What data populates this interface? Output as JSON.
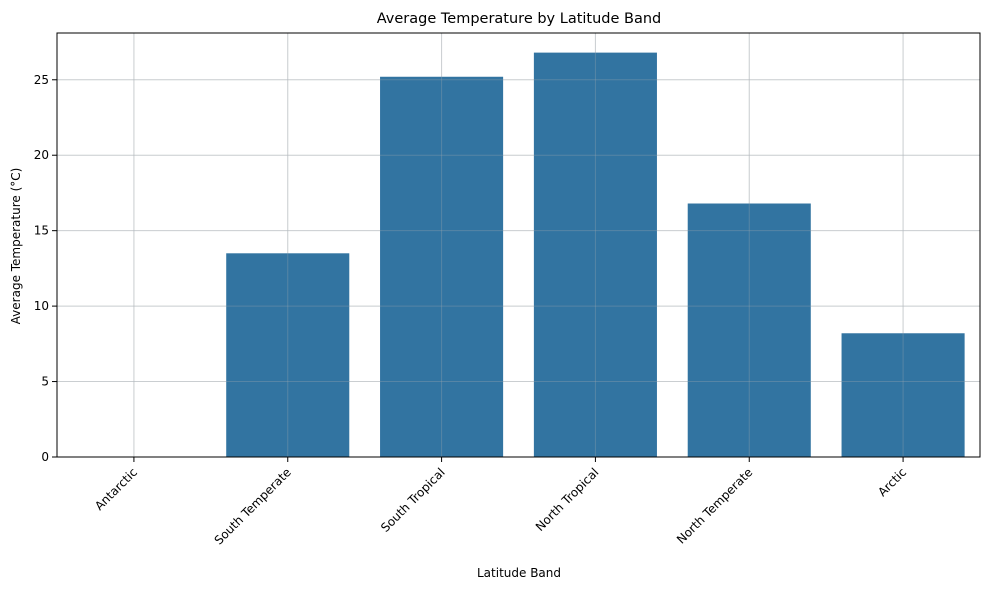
{
  "chart_data": {
    "type": "bar",
    "title": "Average Temperature by Latitude Band",
    "xlabel": "Latitude Band",
    "ylabel": "Average Temperature (°C)",
    "categories": [
      "Antarctic",
      "South Temperate",
      "South Tropical",
      "North Tropical",
      "North Temperate",
      "Arctic"
    ],
    "values": [
      0,
      13.5,
      25.2,
      26.8,
      16.8,
      8.2
    ],
    "ylim": [
      0,
      28.1
    ],
    "yticks": [
      0,
      5,
      10,
      15,
      20,
      25
    ],
    "grid": true,
    "bar_color": "#3274a1",
    "grid_color": "#e3e3e3"
  }
}
